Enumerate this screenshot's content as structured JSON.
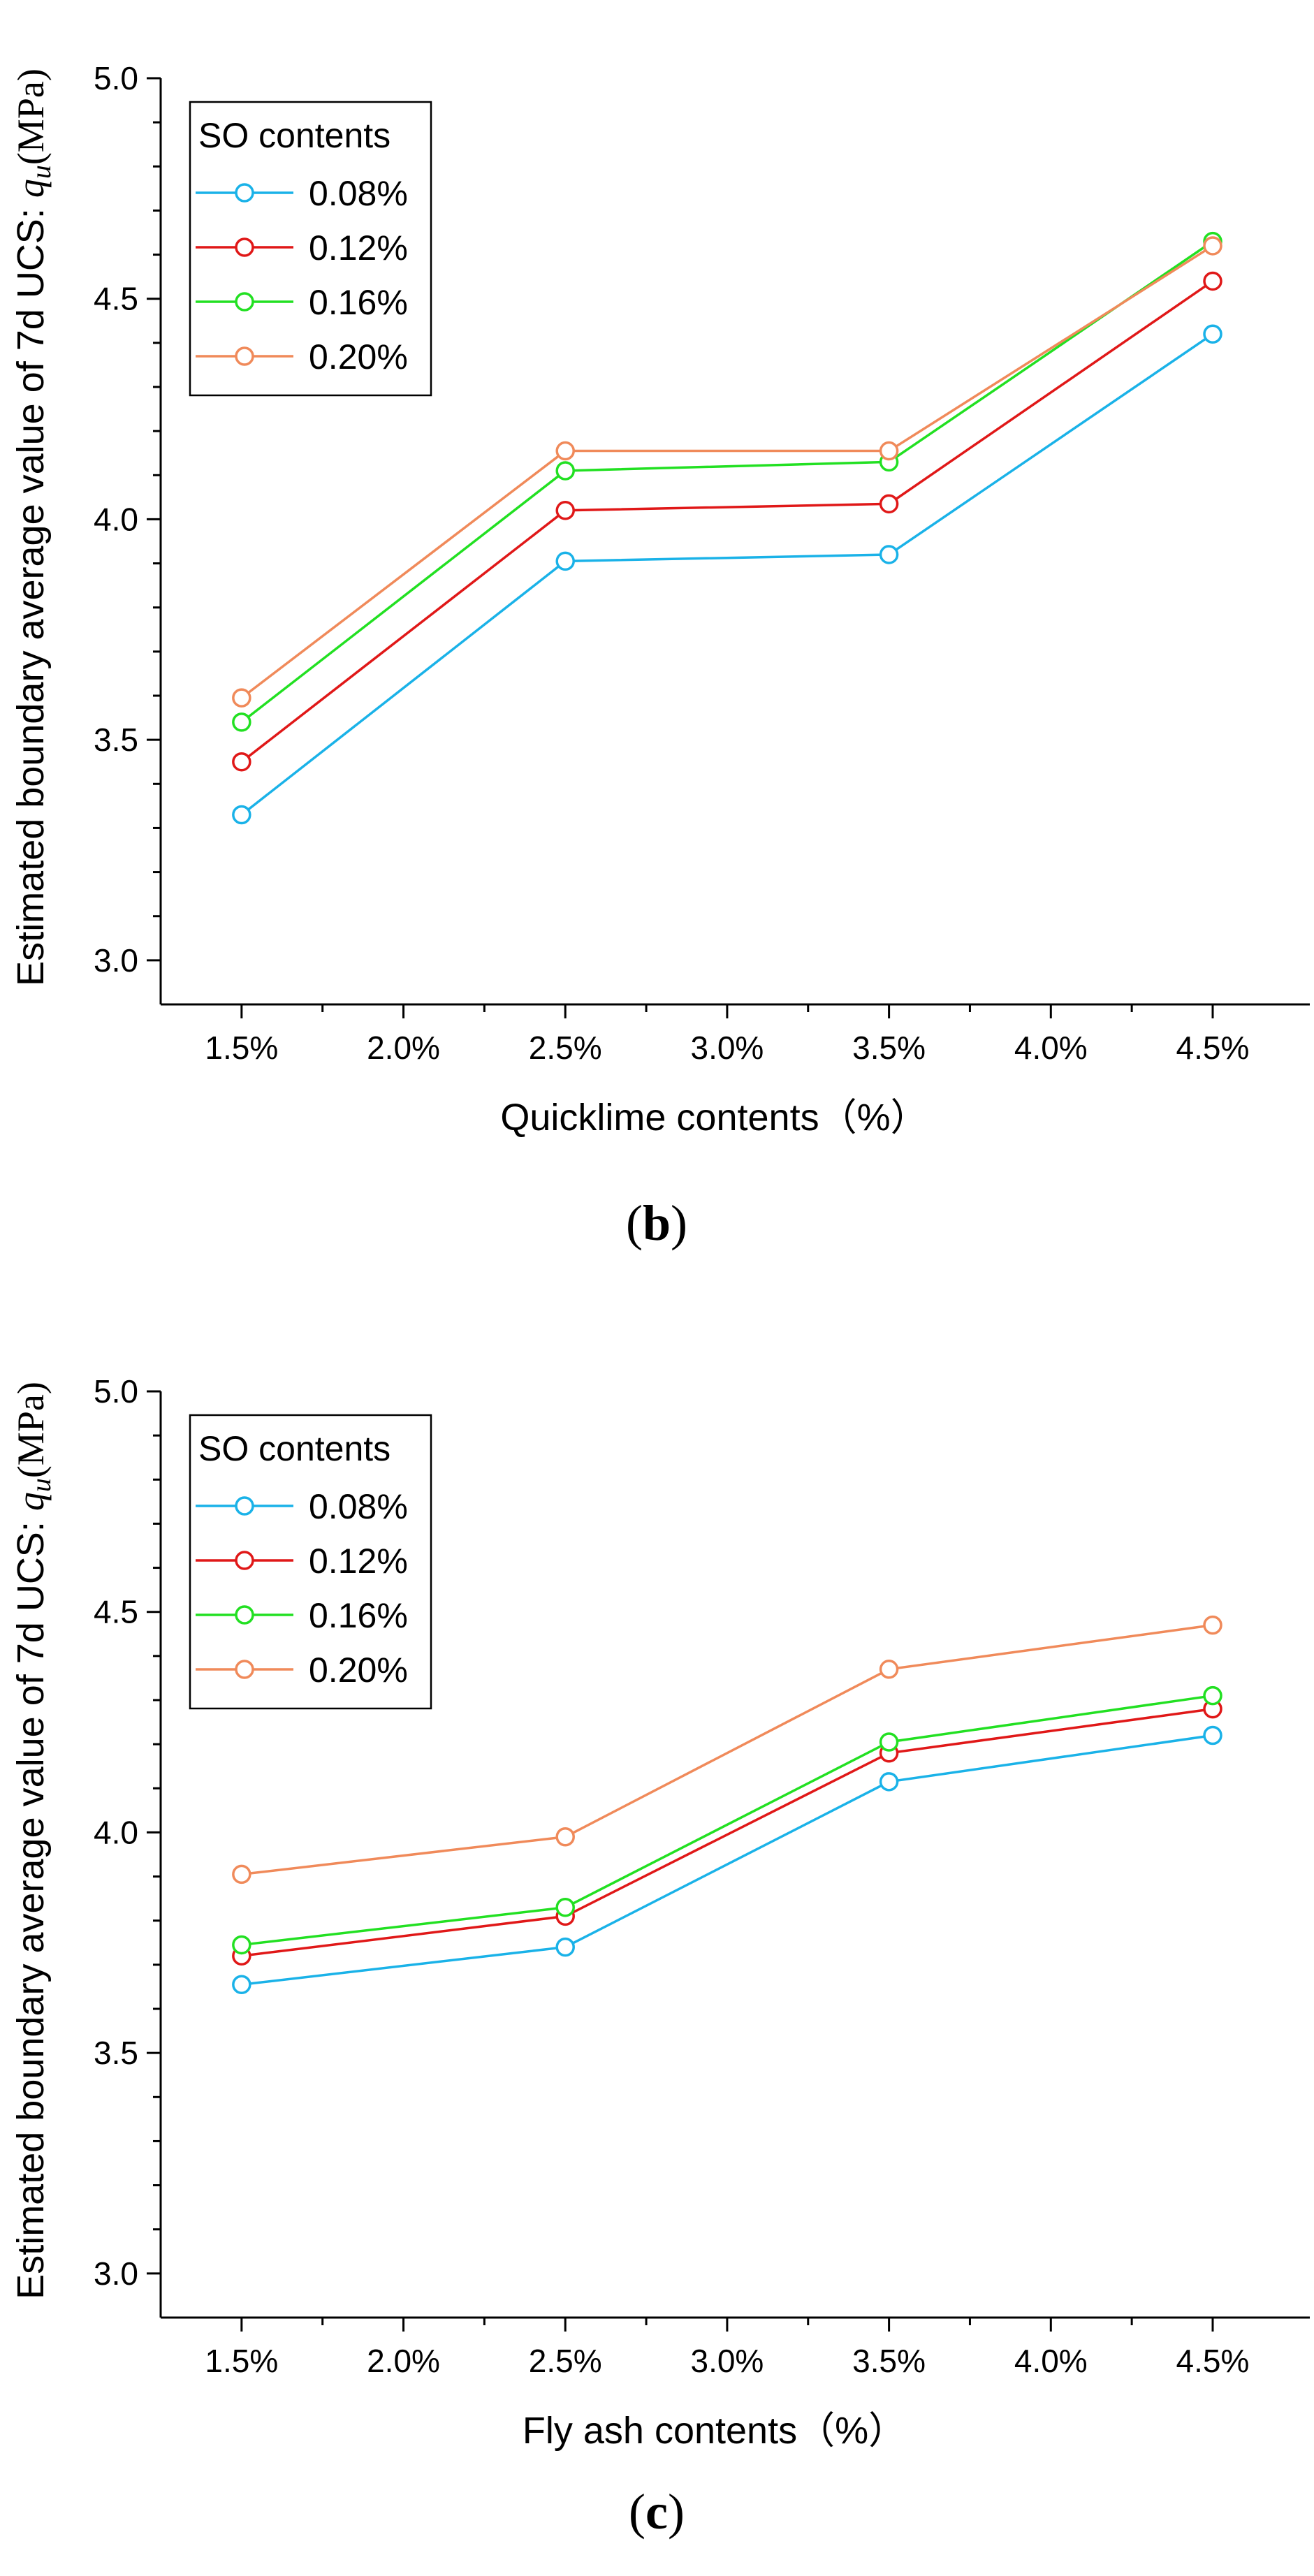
{
  "chart_data": [
    {
      "type": "line",
      "panel": "b",
      "categories": [
        "1.5%",
        "2.5%",
        "3.5%",
        "4.5%"
      ],
      "x": [
        1.5,
        2.5,
        3.5,
        4.5
      ],
      "x_ticks": [
        "1.5%",
        "2.0%",
        "2.5%",
        "3.0%",
        "3.5%",
        "4.0%",
        "4.5%"
      ],
      "x_tick_values": [
        1.5,
        2.0,
        2.5,
        3.0,
        3.5,
        4.0,
        4.5
      ],
      "xlim": [
        1.25,
        4.8
      ],
      "ylim": [
        2.9,
        5.0
      ],
      "y_ticks": [
        "3.0",
        "3.5",
        "4.0",
        "4.5",
        "5.0"
      ],
      "y_tick_values": [
        3.0,
        3.5,
        4.0,
        4.5,
        5.0
      ],
      "xlabel": "Quicklime contents（%）",
      "ylabel_prefix": "Estimated boundary average value of 7d UCS: ",
      "ylabel_var": "q",
      "ylabel_sub": "u",
      "ylabel_unit": "(MPa)",
      "legend_title": "SO contents",
      "legend_position": "top-left",
      "series": [
        {
          "name": "0.08%",
          "color": "#1ab2e8",
          "values": [
            3.33,
            3.905,
            3.92,
            4.42
          ]
        },
        {
          "name": "0.12%",
          "color": "#e01818",
          "values": [
            3.45,
            4.02,
            4.035,
            4.54
          ]
        },
        {
          "name": "0.16%",
          "color": "#22e022",
          "values": [
            3.54,
            4.11,
            4.13,
            4.63
          ]
        },
        {
          "name": "0.20%",
          "color": "#f08a5a",
          "values": [
            3.595,
            4.155,
            4.155,
            4.62
          ]
        }
      ],
      "panel_label_open": "(",
      "panel_label_letter": "b",
      "panel_label_close": ")"
    },
    {
      "type": "line",
      "panel": "c",
      "categories": [
        "1.5%",
        "2.5%",
        "3.5%",
        "4.5%"
      ],
      "x": [
        1.5,
        2.5,
        3.5,
        4.5
      ],
      "x_ticks": [
        "1.5%",
        "2.0%",
        "2.5%",
        "3.0%",
        "3.5%",
        "4.0%",
        "4.5%"
      ],
      "x_tick_values": [
        1.5,
        2.0,
        2.5,
        3.0,
        3.5,
        4.0,
        4.5
      ],
      "xlim": [
        1.25,
        4.8
      ],
      "ylim": [
        2.9,
        5.0
      ],
      "y_ticks": [
        "3.0",
        "3.5",
        "4.0",
        "4.5",
        "5.0"
      ],
      "y_tick_values": [
        3.0,
        3.5,
        4.0,
        4.5,
        5.0
      ],
      "xlabel": "Fly ash contents（%）",
      "ylabel_prefix": "Estimated boundary average value of 7d UCS: ",
      "ylabel_var": "q",
      "ylabel_sub": "u",
      "ylabel_unit": "(MPa)",
      "legend_title": "SO contents",
      "legend_position": "top-left",
      "series": [
        {
          "name": "0.08%",
          "color": "#1ab2e8",
          "values": [
            3.655,
            3.74,
            4.115,
            4.22
          ]
        },
        {
          "name": "0.12%",
          "color": "#e01818",
          "values": [
            3.72,
            3.81,
            4.18,
            4.28
          ]
        },
        {
          "name": "0.16%",
          "color": "#22e022",
          "values": [
            3.745,
            3.83,
            4.205,
            4.31
          ]
        },
        {
          "name": "0.20%",
          "color": "#f08a5a",
          "values": [
            3.905,
            3.99,
            4.37,
            4.47
          ]
        }
      ],
      "panel_label_open": "(",
      "panel_label_letter": "c",
      "panel_label_close": ")"
    }
  ]
}
